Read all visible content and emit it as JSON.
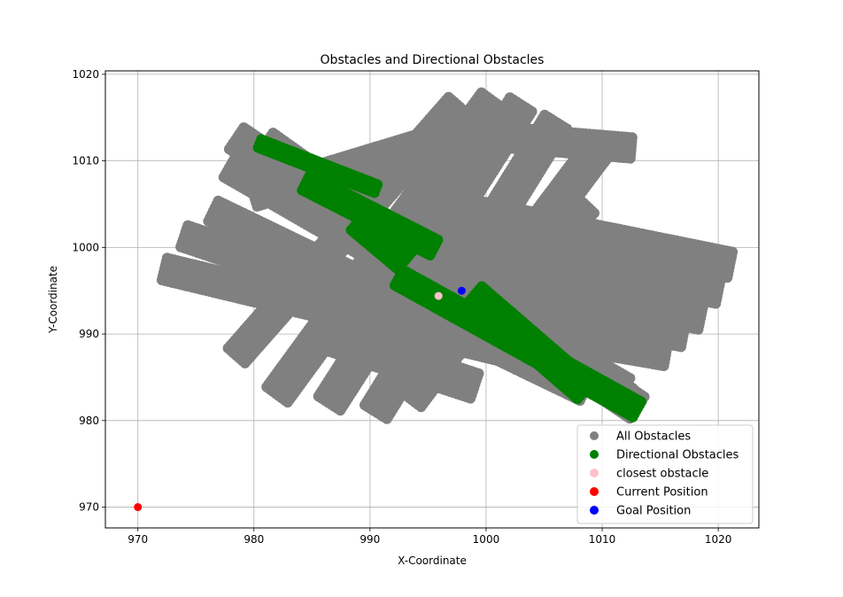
{
  "chart_data": {
    "type": "scatter",
    "title": "Obstacles and Directional Obstacles",
    "xlabel": "X-Coordinate",
    "ylabel": "Y-Coordinate",
    "xlim": [
      967.2,
      1023.5
    ],
    "ylim": [
      967.6,
      1020.4
    ],
    "xticks": [
      970,
      980,
      990,
      1000,
      1010,
      1020
    ],
    "yticks": [
      970,
      980,
      990,
      1000,
      1010,
      1020
    ],
    "grid": true,
    "legend_position": "lower-right",
    "series": [
      {
        "name": "All Obstacles",
        "color": "#808080",
        "bands": [
          {
            "from": [
              978.5,
              1012.6
            ],
            "to": [
              1013.0,
              981.5
            ],
            "halfwidth": 1.5
          },
          {
            "from": [
              981.0,
              1012.0
            ],
            "to": [
              1012.0,
              982.5
            ],
            "halfwidth": 1.5
          },
          {
            "from": [
              978.0,
              1009.5
            ],
            "to": [
              1011.8,
              983.5
            ],
            "halfwidth": 1.6
          },
          {
            "from": [
              976.5,
              1004.2
            ],
            "to": [
              1008.5,
              983.5
            ],
            "halfwidth": 1.3
          },
          {
            "from": [
              974.0,
              1001.3
            ],
            "to": [
              1009.0,
              985.5
            ],
            "halfwidth": 1.3
          },
          {
            "from": [
              972.3,
              997.5
            ],
            "to": [
              1008.0,
              986.0
            ],
            "halfwidth": 1.3
          },
          {
            "from": [
              997.0,
              1004.5
            ],
            "to": [
              1021.0,
              998.0
            ],
            "halfwidth": 1.5
          },
          {
            "from": [
              996.0,
              1001.5
            ],
            "to": [
              1020.0,
              995.0
            ],
            "halfwidth": 1.5
          },
          {
            "from": [
              995.0,
              998.5
            ],
            "to": [
              1018.5,
              992.0
            ],
            "halfwidth": 1.5
          },
          {
            "from": [
              994.0,
              996.0
            ],
            "to": [
              1017.0,
              990.0
            ],
            "halfwidth": 1.5
          },
          {
            "from": [
              993.0,
              993.0
            ],
            "to": [
              1015.5,
              987.8
            ],
            "halfwidth": 1.5
          },
          {
            "from": [
              997.5,
              1016.5
            ],
            "to": [
              978.5,
              987.5
            ],
            "halfwidth": 1.3
          },
          {
            "from": [
              1000.5,
              1017.0
            ],
            "to": [
              982.0,
              983.0
            ],
            "halfwidth": 1.5
          },
          {
            "from": [
              1003.0,
              1016.5
            ],
            "to": [
              986.5,
              982.0
            ],
            "halfwidth": 1.5
          },
          {
            "from": [
              1006.0,
              1014.5
            ],
            "to": [
              990.5,
              981.0
            ],
            "halfwidth": 1.5
          },
          {
            "from": [
              1010.0,
              1012.0
            ],
            "to": [
              993.5,
              982.5
            ],
            "halfwidth": 1.5
          },
          {
            "from": [
              1008.5,
              1005.0
            ],
            "to": [
              996.5,
              988.0
            ],
            "halfwidth": 1.5
          },
          {
            "from": [
              1005.0,
              1003.0
            ],
            "to": [
              992.0,
              986.0
            ],
            "halfwidth": 1.5
          },
          {
            "from": [
              980.0,
              1006.0
            ],
            "to": [
              996.0,
              1012.5
            ],
            "halfwidth": 1.3
          },
          {
            "from": [
              999.0,
              1013.0
            ],
            "to": [
              1012.5,
              1011.5
            ],
            "halfwidth": 1.2
          },
          {
            "from": [
              985.5,
              990.0
            ],
            "to": [
              999.0,
              984.0
            ],
            "halfwidth": 1.5
          }
        ]
      },
      {
        "name": "Directional Obstacles",
        "color": "#008000",
        "bands": [
          {
            "from": [
              980.5,
              1012.0
            ],
            "to": [
              990.5,
              1006.8
            ],
            "halfwidth": 0.5
          },
          {
            "from": [
              984.5,
              1007.5
            ],
            "to": [
              995.5,
              1000.0
            ],
            "halfwidth": 1.0
          },
          {
            "from": [
              989.0,
              1003.0
            ],
            "to": [
              993.0,
              998.5
            ],
            "halfwidth": 1.3
          },
          {
            "from": [
              992.5,
              996.5
            ],
            "to": [
              1013.0,
              981.3
            ],
            "halfwidth": 1.0
          },
          {
            "from": [
              999.0,
              994.5
            ],
            "to": [
              1008.5,
              983.5
            ],
            "halfwidth": 1.3
          }
        ]
      },
      {
        "name": "closest obstacle",
        "color": "#ffc0cb",
        "points": [
          [
            995.9,
            994.4
          ]
        ]
      },
      {
        "name": "Current Position",
        "color": "#ff0000",
        "points": [
          [
            970.0,
            970.0
          ]
        ]
      },
      {
        "name": "Goal Position",
        "color": "#0000ff",
        "points": [
          [
            997.9,
            995.0
          ]
        ]
      }
    ]
  }
}
